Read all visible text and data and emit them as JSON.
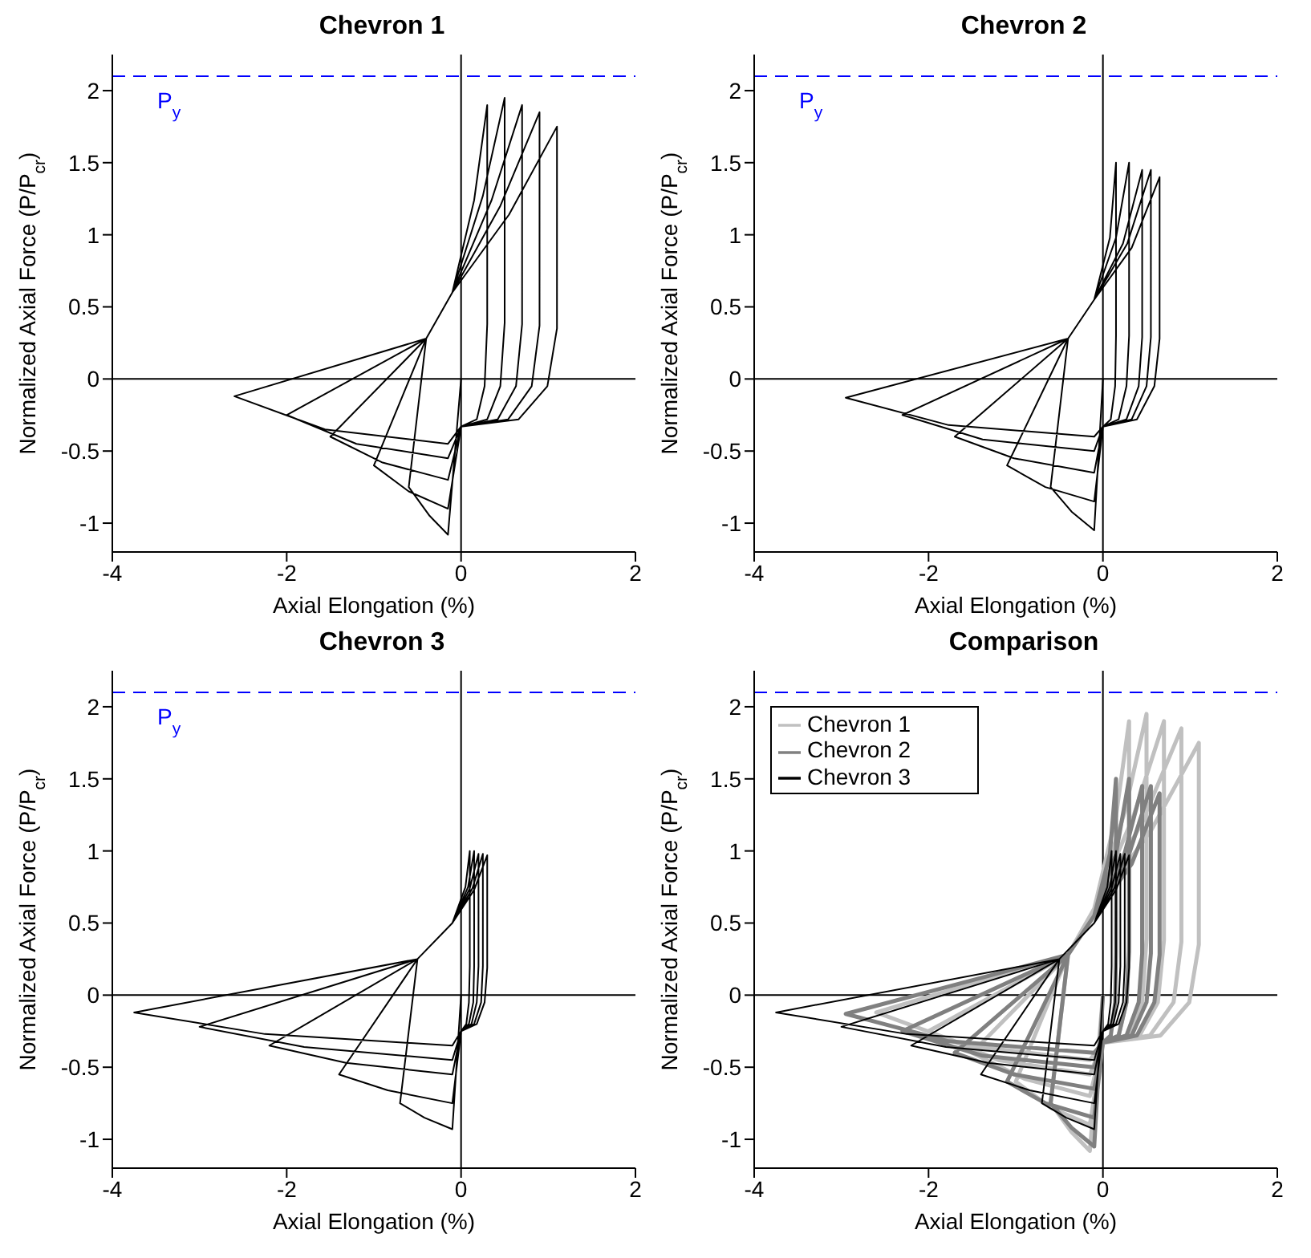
{
  "chart_data": [
    {
      "type": "line",
      "title": "Chevron 1",
      "xlabel": "Axial Elongation (%)",
      "ylabel": "Normalized Axial Force (P/P$_{cr}$)",
      "xlim": [
        -4,
        2
      ],
      "xticks": [
        -4,
        -2,
        0,
        2
      ],
      "ylim": [
        -1.2,
        2.25
      ],
      "yticks": [
        -1,
        -0.5,
        0,
        0.5,
        1,
        1.5,
        2
      ],
      "grid": false,
      "marker": "none",
      "line_style": "solid",
      "ref_lines": [
        {
          "axis": "y",
          "value": 2.1,
          "label": "P$_{y}$",
          "color": "#0000ff",
          "line_style": "dashed"
        },
        {
          "axis": "y",
          "value": 0,
          "color": "#000000"
        },
        {
          "axis": "x",
          "value": 0,
          "color": "#000000"
        }
      ],
      "series": [
        {
          "color": "#000000",
          "x": [
            0,
            -0.15,
            -0.36,
            -0.6,
            -0.4,
            -0.1,
            0.15,
            0.3,
            0.3,
            0.27,
            0.18,
            0,
            -0.15,
            -0.6,
            -1.0,
            -0.4,
            -0.1,
            0.25,
            0.5,
            0.5,
            0.45,
            0.3,
            0,
            -0.15,
            -0.9,
            -1.5,
            -0.4,
            -0.1,
            0.35,
            0.7,
            0.7,
            0.63,
            0.42,
            0,
            -0.15,
            -1.2,
            -2.0,
            -0.4,
            -0.1,
            0.45,
            0.9,
            0.9,
            0.81,
            0.54,
            0,
            -0.15,
            -1.56,
            -2.6,
            -0.4,
            -0.1,
            0.55,
            1.1,
            1.1,
            0.99,
            0.66,
            0
          ],
          "values": [
            0,
            -1.08,
            -0.95,
            -0.75,
            0.28,
            0.6,
            1.24,
            1.9,
            0.38,
            -0.05,
            -0.28,
            -0.33,
            -0.9,
            -0.78,
            -0.6,
            0.28,
            0.6,
            1.27,
            1.95,
            0.39,
            -0.05,
            -0.28,
            -0.33,
            -0.7,
            -0.58,
            -0.4,
            0.28,
            0.6,
            1.24,
            1.9,
            0.38,
            -0.05,
            -0.28,
            -0.33,
            -0.55,
            -0.45,
            -0.25,
            0.28,
            0.6,
            1.2,
            1.85,
            0.37,
            -0.05,
            -0.28,
            -0.33,
            -0.45,
            -0.35,
            -0.12,
            0.28,
            0.6,
            1.14,
            1.75,
            0.35,
            -0.05,
            -0.28,
            -0.33
          ]
        }
      ]
    },
    {
      "type": "line",
      "title": "Chevron 2",
      "xlabel": "Axial Elongation (%)",
      "ylabel": "Normalized Axial Force (P/P$_{cr}$)",
      "xlim": [
        -4,
        2
      ],
      "xticks": [
        -4,
        -2,
        0,
        2
      ],
      "ylim": [
        -1.2,
        2.25
      ],
      "yticks": [
        -1,
        -0.5,
        0,
        0.5,
        1,
        1.5,
        2
      ],
      "grid": false,
      "marker": "none",
      "line_style": "solid",
      "ref_lines": [
        {
          "axis": "y",
          "value": 2.1,
          "label": "P$_{y}$",
          "color": "#0000ff",
          "line_style": "dashed"
        },
        {
          "axis": "y",
          "value": 0,
          "color": "#000000"
        },
        {
          "axis": "x",
          "value": 0,
          "color": "#000000"
        }
      ],
      "series": [
        {
          "color": "#000000",
          "x": [
            0,
            -0.1,
            -0.36,
            -0.6,
            -0.4,
            -0.1,
            0.08,
            0.15,
            0.15,
            0.14,
            0.09,
            0,
            -0.1,
            -0.66,
            -1.1,
            -0.4,
            -0.1,
            0.15,
            0.3,
            0.3,
            0.27,
            0.18,
            0,
            -0.1,
            -1.02,
            -1.7,
            -0.4,
            -0.1,
            0.23,
            0.45,
            0.45,
            0.41,
            0.27,
            0,
            -0.1,
            -1.38,
            -2.3,
            -0.4,
            -0.1,
            0.28,
            0.55,
            0.55,
            0.5,
            0.33,
            0,
            -0.1,
            -1.77,
            -2.95,
            -0.4,
            -0.1,
            0.33,
            0.65,
            0.65,
            0.59,
            0.39,
            0
          ],
          "values": [
            0,
            -1.05,
            -0.92,
            -0.75,
            0.28,
            0.55,
            0.98,
            1.5,
            0.3,
            -0.05,
            -0.28,
            -0.33,
            -0.85,
            -0.75,
            -0.6,
            0.28,
            0.55,
            0.98,
            1.5,
            0.3,
            -0.05,
            -0.28,
            -0.33,
            -0.65,
            -0.55,
            -0.4,
            0.28,
            0.55,
            0.94,
            1.45,
            0.29,
            -0.05,
            -0.28,
            -0.33,
            -0.5,
            -0.42,
            -0.25,
            0.28,
            0.55,
            0.94,
            1.45,
            0.29,
            -0.05,
            -0.28,
            -0.33,
            -0.4,
            -0.32,
            -0.13,
            0.28,
            0.55,
            0.91,
            1.4,
            0.28,
            -0.05,
            -0.28,
            -0.33
          ]
        }
      ]
    },
    {
      "type": "line",
      "title": "Chevron 3",
      "xlabel": "Axial Elongation (%)",
      "ylabel": "Normalized Axial Force (P/P$_{cr}$)",
      "xlim": [
        -4,
        2
      ],
      "xticks": [
        -4,
        -2,
        0,
        2
      ],
      "ylim": [
        -1.2,
        2.25
      ],
      "yticks": [
        -1,
        -0.5,
        0,
        0.5,
        1,
        1.5,
        2
      ],
      "grid": false,
      "marker": "none",
      "line_style": "solid",
      "ref_lines": [
        {
          "axis": "y",
          "value": 2.1,
          "label": "P$_{y}$",
          "color": "#0000ff",
          "line_style": "dashed"
        },
        {
          "axis": "y",
          "value": 0,
          "color": "#000000"
        },
        {
          "axis": "x",
          "value": 0,
          "color": "#000000"
        }
      ],
      "series": [
        {
          "color": "#000000",
          "x": [
            0,
            -0.1,
            -0.42,
            -0.7,
            -0.5,
            -0.1,
            0.05,
            0.1,
            0.1,
            0.09,
            0.06,
            0,
            -0.1,
            -0.84,
            -1.4,
            -0.5,
            -0.1,
            0.08,
            0.15,
            0.15,
            0.14,
            0.09,
            0,
            -0.1,
            -1.32,
            -2.2,
            -0.5,
            -0.1,
            0.1,
            0.2,
            0.2,
            0.18,
            0.12,
            0,
            -0.1,
            -1.8,
            -3.0,
            -0.5,
            -0.1,
            0.13,
            0.25,
            0.25,
            0.23,
            0.15,
            0,
            -0.1,
            -2.25,
            -3.75,
            -0.5,
            -0.1,
            0.15,
            0.3,
            0.3,
            0.27,
            0.18,
            0
          ],
          "values": [
            0,
            -0.93,
            -0.85,
            -0.75,
            0.25,
            0.5,
            0.75,
            1.0,
            0.2,
            -0.05,
            -0.2,
            -0.25,
            -0.75,
            -0.66,
            -0.55,
            0.25,
            0.5,
            0.75,
            1.0,
            0.2,
            -0.05,
            -0.2,
            -0.25,
            -0.55,
            -0.47,
            -0.35,
            0.25,
            0.5,
            0.74,
            0.98,
            0.2,
            -0.05,
            -0.2,
            -0.25,
            -0.45,
            -0.36,
            -0.22,
            0.25,
            0.5,
            0.74,
            0.98,
            0.2,
            -0.05,
            -0.2,
            -0.25,
            -0.35,
            -0.27,
            -0.12,
            0.25,
            0.5,
            0.73,
            0.97,
            0.19,
            -0.05,
            -0.2,
            -0.25
          ]
        }
      ]
    },
    {
      "type": "line",
      "title": "Comparison",
      "xlabel": "Axial Elongation (%)",
      "ylabel": "Normalized Axial Force (P/P$_{cr}$)",
      "xlim": [
        -4,
        2
      ],
      "xticks": [
        -4,
        -2,
        0,
        2
      ],
      "ylim": [
        -1.2,
        2.25
      ],
      "yticks": [
        -1,
        -0.5,
        0,
        0.5,
        1,
        1.5,
        2
      ],
      "grid": false,
      "marker": "none",
      "line_style": "solid",
      "legend": "top left",
      "ref_lines": [
        {
          "axis": "y",
          "value": 2.1,
          "color": "#0000ff",
          "line_style": "dashed"
        },
        {
          "axis": "y",
          "value": 0,
          "color": "#000000"
        },
        {
          "axis": "x",
          "value": 0,
          "color": "#000000"
        }
      ],
      "series": [
        {
          "name": "Chevron 1",
          "color": "#c0c0c0",
          "x": [
            0,
            -0.15,
            -0.36,
            -0.6,
            -0.4,
            -0.1,
            0.15,
            0.3,
            0.3,
            0.27,
            0.18,
            0,
            -0.15,
            -0.6,
            -1.0,
            -0.4,
            -0.1,
            0.25,
            0.5,
            0.5,
            0.45,
            0.3,
            0,
            -0.15,
            -0.9,
            -1.5,
            -0.4,
            -0.1,
            0.35,
            0.7,
            0.7,
            0.63,
            0.42,
            0,
            -0.15,
            -1.2,
            -2.0,
            -0.4,
            -0.1,
            0.45,
            0.9,
            0.9,
            0.81,
            0.54,
            0,
            -0.15,
            -1.56,
            -2.6,
            -0.4,
            -0.1,
            0.55,
            1.1,
            1.1,
            0.99,
            0.66,
            0
          ],
          "values": [
            0,
            -1.08,
            -0.95,
            -0.75,
            0.28,
            0.6,
            1.24,
            1.9,
            0.38,
            -0.05,
            -0.28,
            -0.33,
            -0.9,
            -0.78,
            -0.6,
            0.28,
            0.6,
            1.27,
            1.95,
            0.39,
            -0.05,
            -0.28,
            -0.33,
            -0.7,
            -0.58,
            -0.4,
            0.28,
            0.6,
            1.24,
            1.9,
            0.38,
            -0.05,
            -0.28,
            -0.33,
            -0.55,
            -0.45,
            -0.25,
            0.28,
            0.6,
            1.2,
            1.85,
            0.37,
            -0.05,
            -0.28,
            -0.33,
            -0.45,
            -0.35,
            -0.12,
            0.28,
            0.6,
            1.14,
            1.75,
            0.35,
            -0.05,
            -0.28,
            -0.33
          ]
        },
        {
          "name": "Chevron 2",
          "color": "#808080",
          "x": [
            0,
            -0.1,
            -0.36,
            -0.6,
            -0.4,
            -0.1,
            0.08,
            0.15,
            0.15,
            0.14,
            0.09,
            0,
            -0.1,
            -0.66,
            -1.1,
            -0.4,
            -0.1,
            0.15,
            0.3,
            0.3,
            0.27,
            0.18,
            0,
            -0.1,
            -1.02,
            -1.7,
            -0.4,
            -0.1,
            0.23,
            0.45,
            0.45,
            0.41,
            0.27,
            0,
            -0.1,
            -1.38,
            -2.3,
            -0.4,
            -0.1,
            0.28,
            0.55,
            0.55,
            0.5,
            0.33,
            0,
            -0.1,
            -1.77,
            -2.95,
            -0.4,
            -0.1,
            0.33,
            0.65,
            0.65,
            0.59,
            0.39,
            0
          ],
          "values": [
            0,
            -1.05,
            -0.92,
            -0.75,
            0.28,
            0.55,
            0.98,
            1.5,
            0.3,
            -0.05,
            -0.28,
            -0.33,
            -0.85,
            -0.75,
            -0.6,
            0.28,
            0.55,
            0.98,
            1.5,
            0.3,
            -0.05,
            -0.28,
            -0.33,
            -0.65,
            -0.55,
            -0.4,
            0.28,
            0.55,
            0.94,
            1.45,
            0.29,
            -0.05,
            -0.28,
            -0.33,
            -0.5,
            -0.42,
            -0.25,
            0.28,
            0.55,
            0.94,
            1.45,
            0.29,
            -0.05,
            -0.28,
            -0.33,
            -0.4,
            -0.32,
            -0.13,
            0.28,
            0.55,
            0.91,
            1.4,
            0.28,
            -0.05,
            -0.28,
            -0.33
          ]
        },
        {
          "name": "Chevron 3",
          "color": "#000000",
          "x": [
            0,
            -0.1,
            -0.42,
            -0.7,
            -0.5,
            -0.1,
            0.05,
            0.1,
            0.1,
            0.09,
            0.06,
            0,
            -0.1,
            -0.84,
            -1.4,
            -0.5,
            -0.1,
            0.08,
            0.15,
            0.15,
            0.14,
            0.09,
            0,
            -0.1,
            -1.32,
            -2.2,
            -0.5,
            -0.1,
            0.1,
            0.2,
            0.2,
            0.18,
            0.12,
            0,
            -0.1,
            -1.8,
            -3.0,
            -0.5,
            -0.1,
            0.13,
            0.25,
            0.25,
            0.23,
            0.15,
            0,
            -0.1,
            -2.25,
            -3.75,
            -0.5,
            -0.1,
            0.15,
            0.3,
            0.3,
            0.27,
            0.18,
            0
          ],
          "values": [
            0,
            -0.93,
            -0.85,
            -0.75,
            0.25,
            0.5,
            0.75,
            1.0,
            0.2,
            -0.05,
            -0.2,
            -0.25,
            -0.75,
            -0.66,
            -0.55,
            0.25,
            0.5,
            0.75,
            1.0,
            0.2,
            -0.05,
            -0.2,
            -0.25,
            -0.55,
            -0.47,
            -0.35,
            0.25,
            0.5,
            0.74,
            0.98,
            0.2,
            -0.05,
            -0.2,
            -0.25,
            -0.45,
            -0.36,
            -0.22,
            0.25,
            0.5,
            0.74,
            0.98,
            0.2,
            -0.05,
            -0.2,
            -0.25,
            -0.35,
            -0.27,
            -0.12,
            0.25,
            0.5,
            0.73,
            0.97,
            0.19,
            -0.05,
            -0.2,
            -0.25
          ]
        }
      ]
    }
  ]
}
